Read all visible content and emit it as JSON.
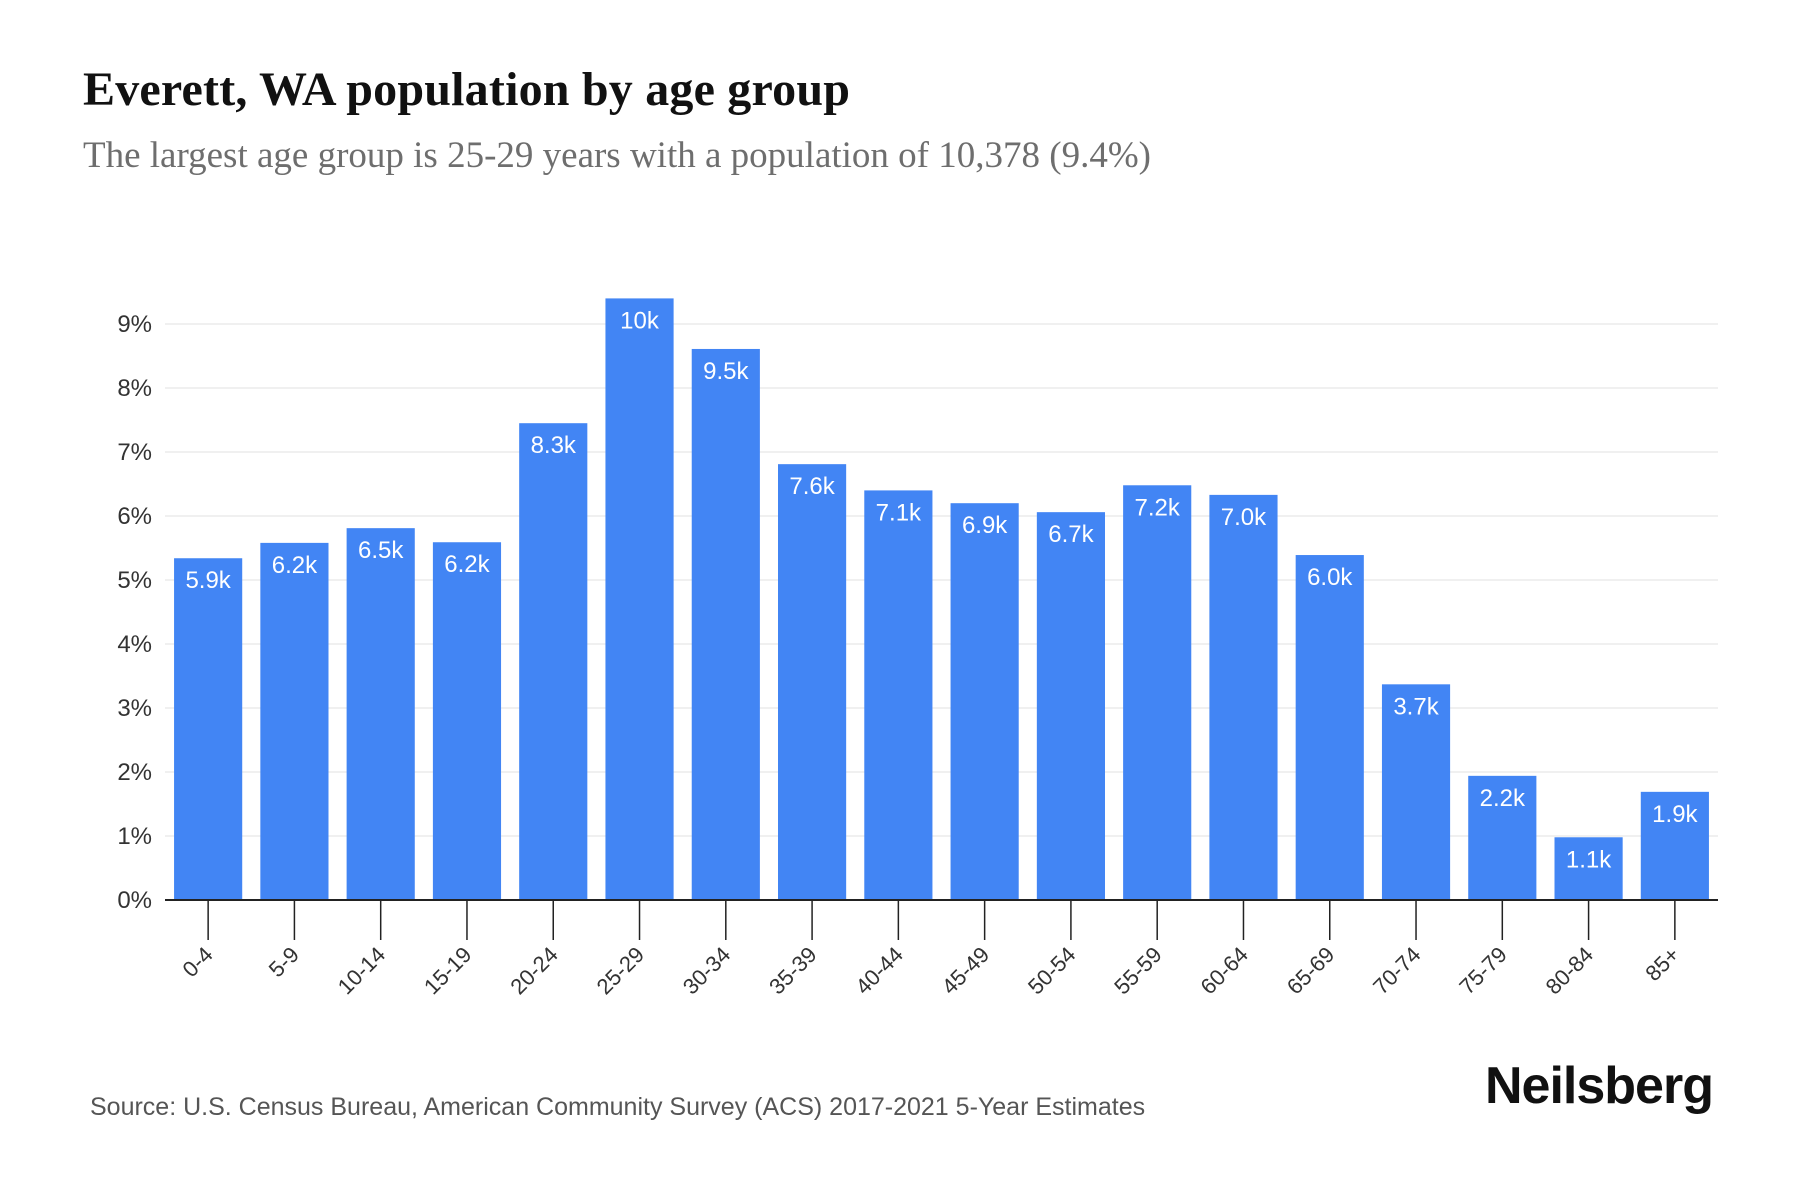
{
  "header": {
    "title": "Everett, WA population by age group",
    "subtitle": "The largest age group is 25-29 years with a population of 10,378 (9.4%)"
  },
  "footer": {
    "source": "Source: U.S. Census Bureau, American Community Survey (ACS) 2017-2021 5-Year Estimates",
    "brand": "Neilsberg"
  },
  "colors": {
    "bar": "#4285f4",
    "grid": "#ececec",
    "axis": "#222222"
  },
  "chart_data": {
    "type": "bar",
    "title": "Everett, WA population by age group",
    "subtitle": "The largest age group is 25-29 years with a population of 10,378 (9.4%)",
    "xlabel": "",
    "ylabel": "",
    "ylim": [
      0,
      9.4
    ],
    "yticks": [
      0,
      1,
      2,
      3,
      4,
      5,
      6,
      7,
      8,
      9
    ],
    "ytick_labels": [
      "0%",
      "1%",
      "2%",
      "3%",
      "4%",
      "5%",
      "6%",
      "7%",
      "8%",
      "9%"
    ],
    "grid": true,
    "legend": "none",
    "categories": [
      "0-4",
      "5-9",
      "10-14",
      "15-19",
      "20-24",
      "25-29",
      "30-34",
      "35-39",
      "40-44",
      "45-49",
      "50-54",
      "55-59",
      "60-64",
      "65-69",
      "70-74",
      "75-79",
      "80-84",
      "85+"
    ],
    "values": [
      5.34,
      5.58,
      5.81,
      5.59,
      7.45,
      9.4,
      8.61,
      6.81,
      6.4,
      6.2,
      6.06,
      6.48,
      6.33,
      5.39,
      3.37,
      1.94,
      0.98,
      1.69
    ],
    "data_labels": [
      "5.9k",
      "6.2k",
      "6.5k",
      "6.2k",
      "8.3k",
      "10k",
      "9.5k",
      "7.6k",
      "7.1k",
      "6.9k",
      "6.7k",
      "7.2k",
      "7.0k",
      "6.0k",
      "3.7k",
      "2.2k",
      "1.1k",
      "1.9k"
    ]
  }
}
